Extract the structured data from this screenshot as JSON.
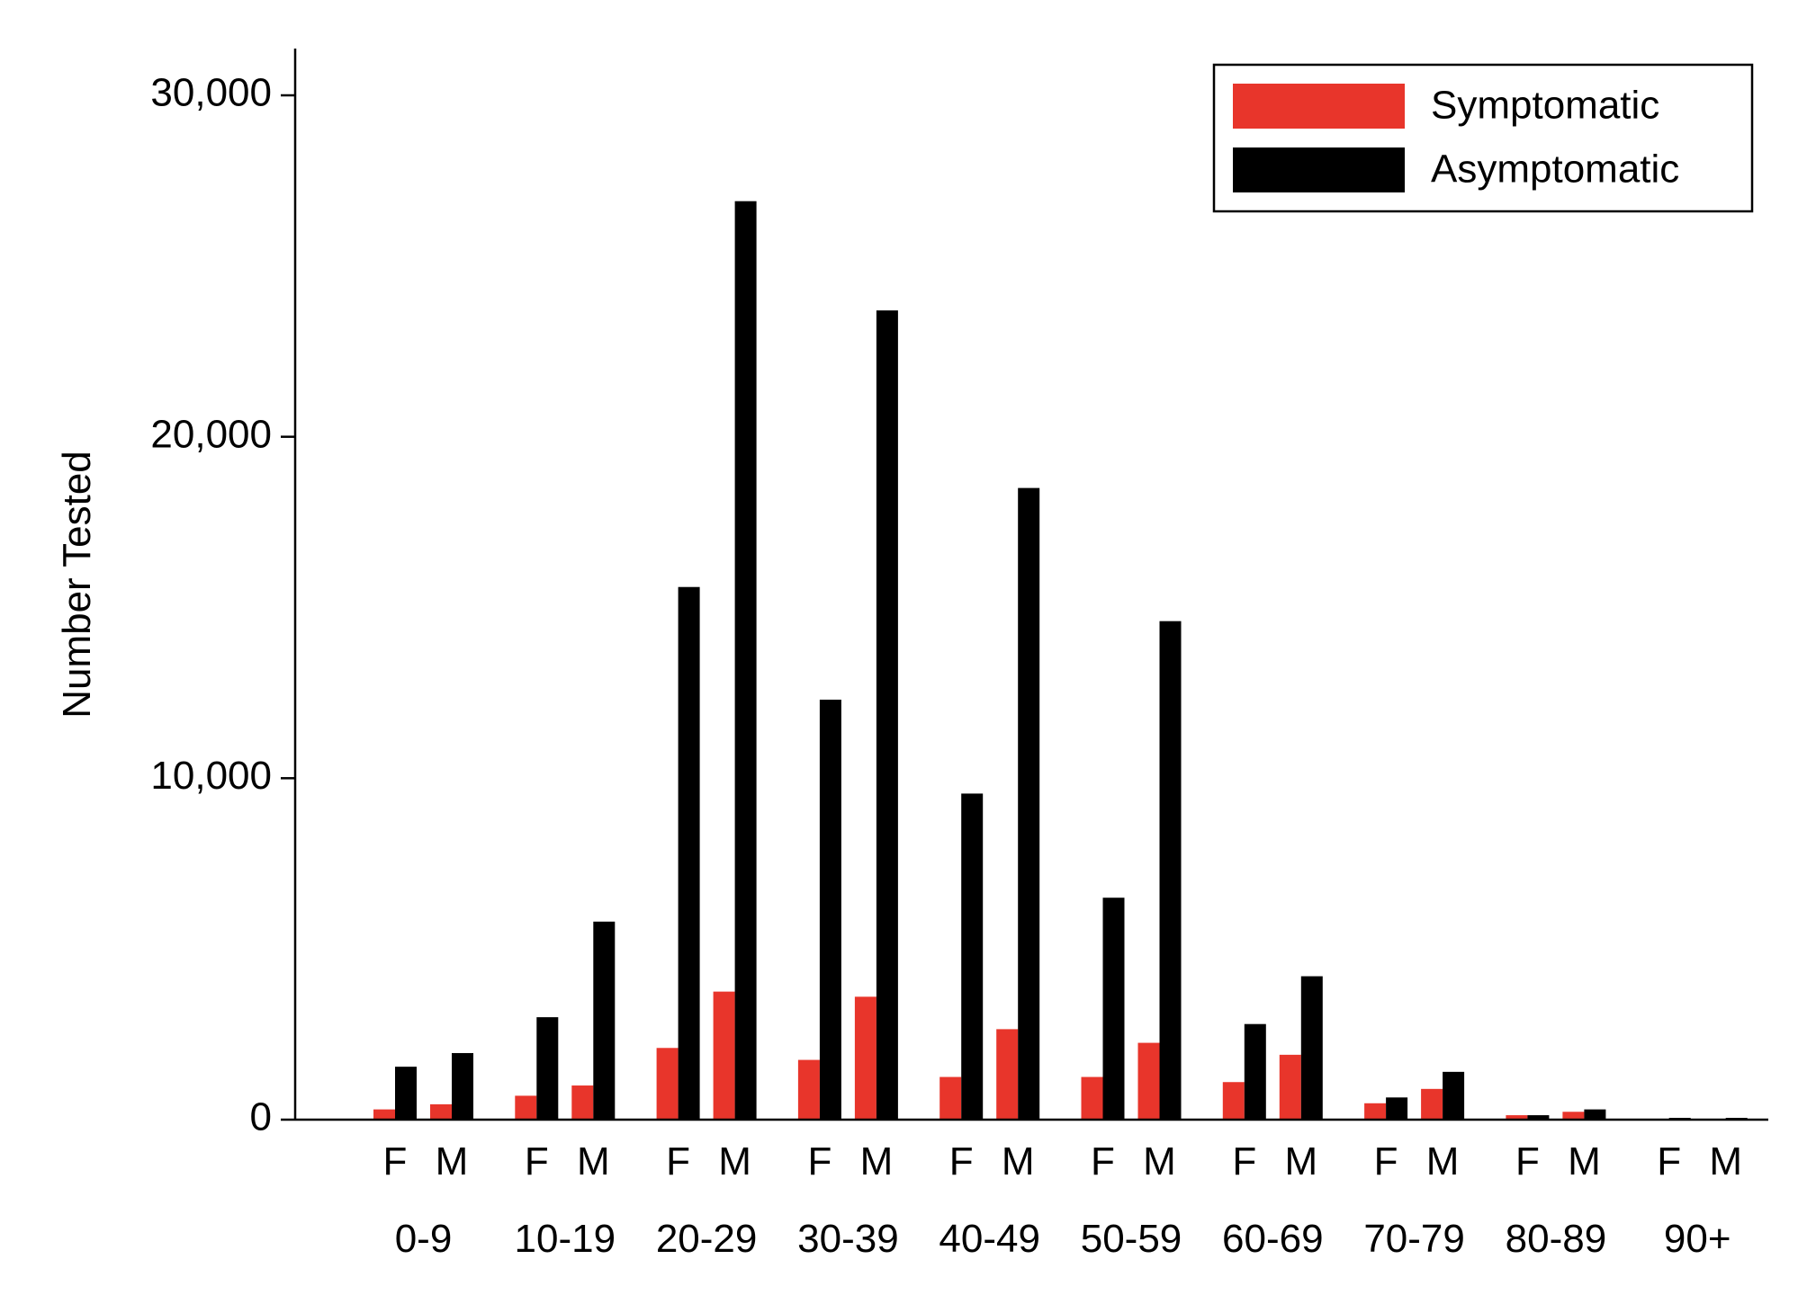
{
  "chart_data": {
    "type": "bar",
    "ylabel": "Number Tested",
    "xlabel": "",
    "ylim": [
      0,
      31500
    ],
    "yticks": [
      0,
      10000,
      20000,
      30000
    ],
    "ytick_labels": [
      "0",
      "10,000",
      "20,000",
      "30,000"
    ],
    "sex_labels": [
      "F",
      "M"
    ],
    "age_groups": [
      "0-9",
      "10-19",
      "20-29",
      "30-39",
      "40-49",
      "50-59",
      "60-69",
      "70-79",
      "80-89",
      "90+"
    ],
    "categories": [
      "0-9 F",
      "0-9 M",
      "10-19 F",
      "10-19 M",
      "20-29 F",
      "20-29 M",
      "30-39 F",
      "30-39 M",
      "40-49 F",
      "40-49 M",
      "50-59 F",
      "50-59 M",
      "60-69 F",
      "60-69 M",
      "70-79 F",
      "70-79 M",
      "80-89 F",
      "80-89 M",
      "90+ F",
      "90+ M"
    ],
    "series": [
      {
        "name": "Symptomatic",
        "color": "#e8352b",
        "values": [
          300,
          450,
          700,
          1000,
          2100,
          3750,
          1750,
          3600,
          1250,
          2650,
          1250,
          2250,
          1100,
          1900,
          480,
          900,
          130,
          230,
          0,
          0
        ]
      },
      {
        "name": "Asymptomatic",
        "color": "#000000",
        "values": [
          1550,
          1950,
          3000,
          5800,
          15600,
          26900,
          12300,
          23700,
          9550,
          18500,
          6500,
          14600,
          2800,
          4200,
          650,
          1400,
          130,
          300,
          10,
          30
        ]
      }
    ],
    "legend_position": "top-right",
    "grid": false
  }
}
